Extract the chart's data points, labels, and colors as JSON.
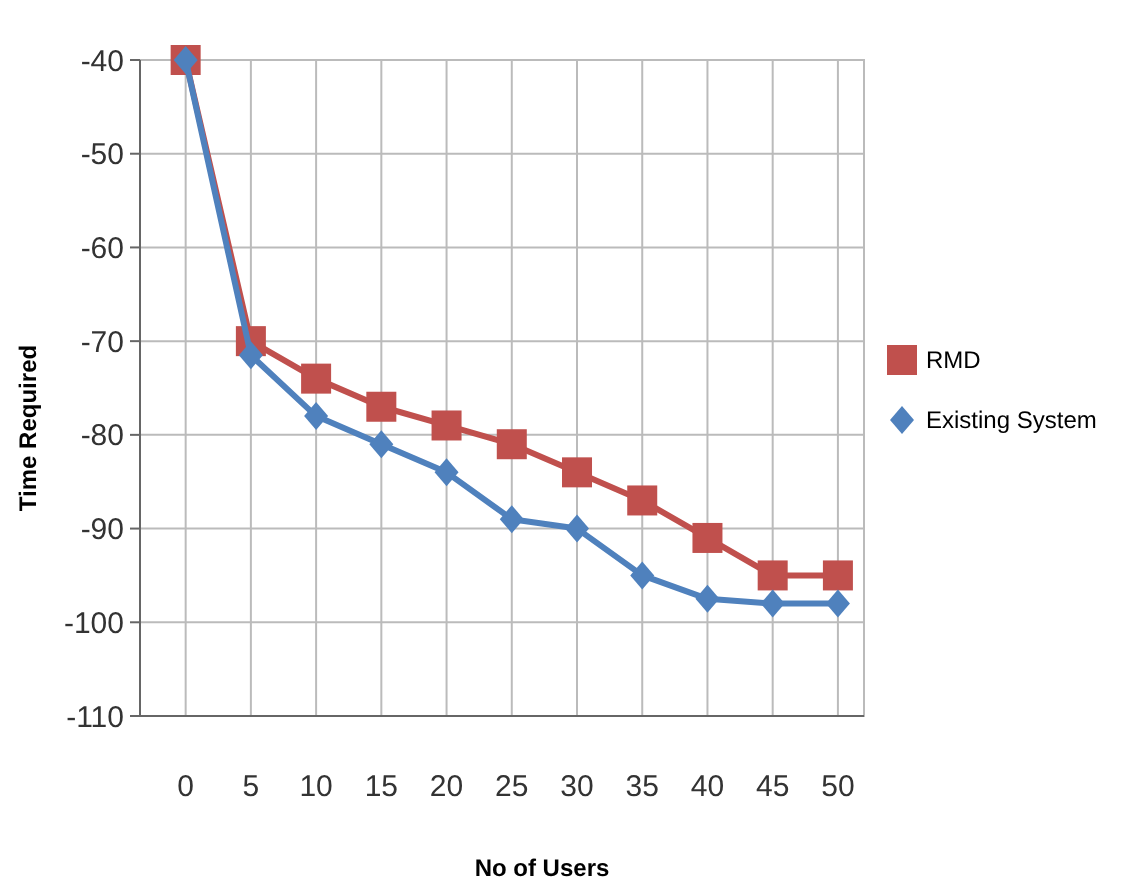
{
  "chart_data": {
    "type": "line",
    "xlabel": "No of Users",
    "ylabel": "Time Required",
    "x": [
      0,
      5,
      10,
      15,
      20,
      25,
      30,
      35,
      40,
      45,
      50
    ],
    "xlim": [
      -3.5,
      52
    ],
    "xticks": [
      0,
      5,
      10,
      15,
      20,
      25,
      30,
      35,
      40,
      45,
      50
    ],
    "ylim": [
      -110,
      -40
    ],
    "yticks": [
      -110,
      -100,
      -90,
      -80,
      -70,
      -60,
      -50,
      -40
    ],
    "grid": true,
    "legend": "right",
    "line_style": "solid",
    "series": [
      {
        "name": "RMD",
        "color": "#c0504d",
        "marker": "square",
        "values": [
          -40,
          -70,
          -74,
          -77,
          -79,
          -81,
          -84,
          -87,
          -91,
          -95,
          -95
        ]
      },
      {
        "name": "Existing System",
        "color": "#4f81bd",
        "marker": "diamond",
        "values": [
          -40,
          -71.5,
          -78,
          -81,
          -84,
          -89,
          -90,
          -95,
          -97.5,
          -98,
          -98
        ]
      }
    ]
  }
}
